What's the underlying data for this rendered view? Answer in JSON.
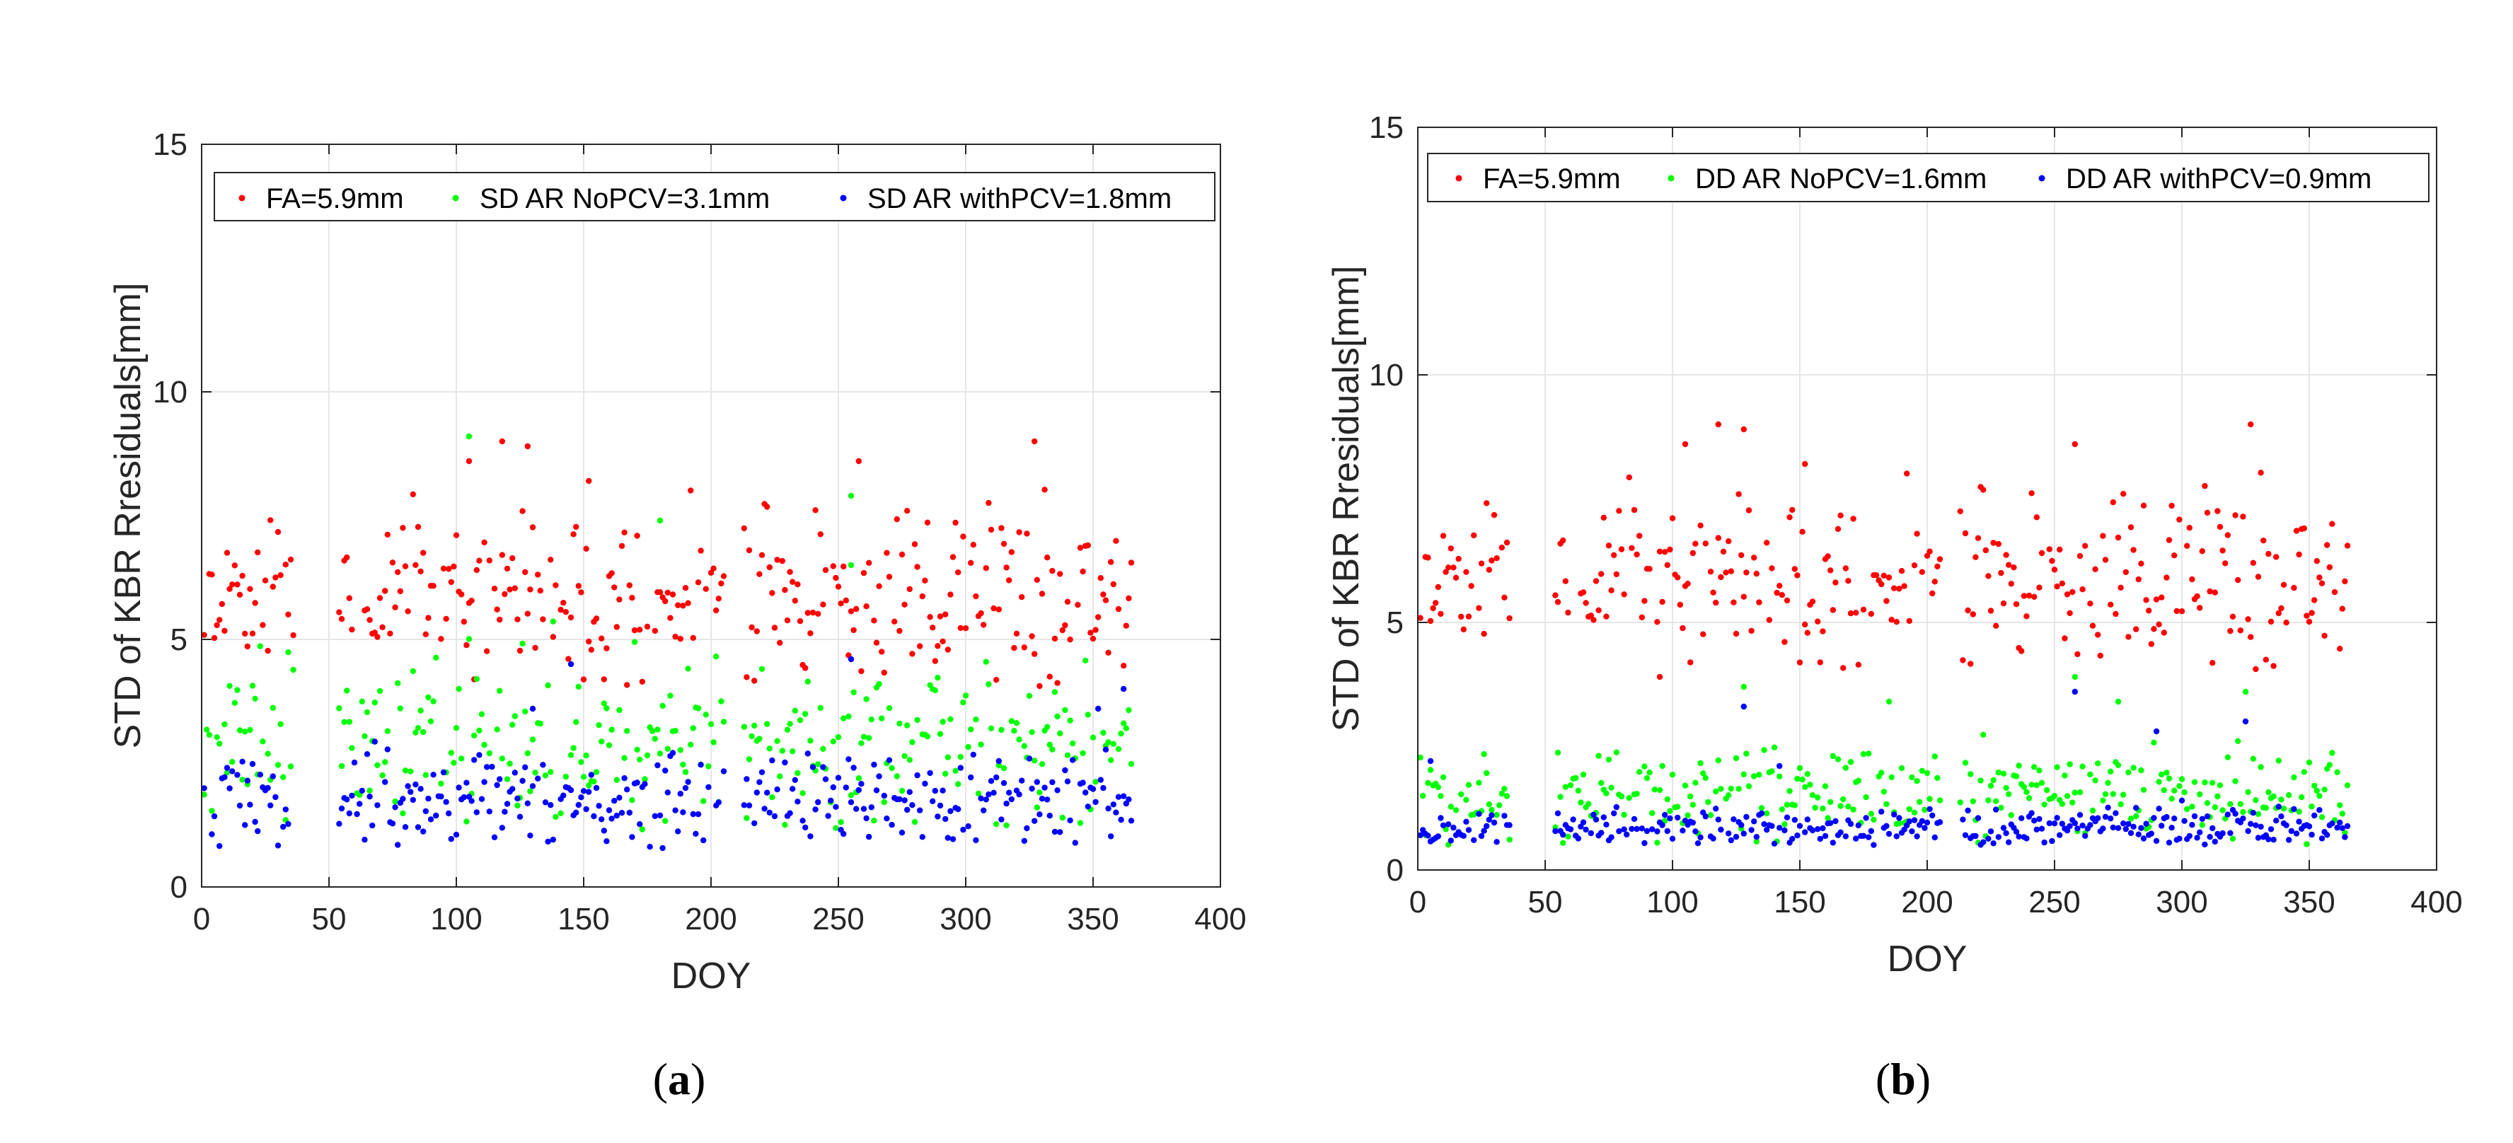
{
  "chart_data": [
    {
      "id": "a",
      "type": "scatter",
      "caption": {
        "open": "(",
        "letter": "a",
        "close": ")"
      },
      "xlabel": "DOY",
      "ylabel": "STD of KBR Rresiduals[mm]",
      "xlim": [
        0,
        400
      ],
      "ylim": [
        0,
        15
      ],
      "xticks": [
        0,
        50,
        100,
        150,
        200,
        250,
        300,
        350,
        400
      ],
      "yticks": [
        0,
        5,
        10,
        15
      ],
      "grid": true,
      "legend_position": "top",
      "series": [
        {
          "name": "FA=5.9mm",
          "color": "#ff0000",
          "mean": 5.9,
          "spread": 0.85,
          "seed": 11,
          "outliers": [
            [
              105,
              8.6
            ],
            [
              118,
              9.0
            ],
            [
              128,
              8.9
            ],
            [
              152,
              8.2
            ],
            [
              258,
              8.6
            ],
            [
              327,
              9.0
            ]
          ]
        },
        {
          "name": "SD AR NoPCV=3.1mm",
          "color": "#00ff00",
          "mean": 2.9,
          "spread": 0.8,
          "seed": 23,
          "outliers": [
            [
              105,
              9.1
            ],
            [
              180,
              7.4
            ],
            [
              255,
              7.9
            ],
            [
              108,
              4.2
            ],
            [
              255,
              6.5
            ]
          ]
        },
        {
          "name": "SD AR withPCV=1.8mm",
          "color": "#0000ff",
          "mean": 1.75,
          "spread": 0.45,
          "seed": 37,
          "outliers": [
            [
              130,
              3.6
            ],
            [
              145,
              4.5
            ],
            [
              255,
              4.6
            ],
            [
              352,
              3.6
            ],
            [
              362,
              4.0
            ]
          ]
        }
      ],
      "doy_segments": [
        [
          1,
          36
        ],
        [
          54,
          205
        ],
        [
          213,
          365
        ]
      ]
    },
    {
      "id": "b",
      "type": "scatter",
      "caption": {
        "open": "(",
        "letter": "b",
        "close": ")"
      },
      "xlabel": "DOY",
      "ylabel": "STD of KBR Rresiduals[mm]",
      "xlim": [
        0,
        400
      ],
      "ylim": [
        0,
        15
      ],
      "xticks": [
        0,
        50,
        100,
        150,
        200,
        250,
        300,
        350,
        400
      ],
      "yticks": [
        0,
        5,
        10,
        15
      ],
      "grid": true,
      "legend_position": "top",
      "series": [
        {
          "name": "FA=5.9mm",
          "color": "#ff0000",
          "mean": 5.9,
          "spread": 0.85,
          "seed": 11,
          "outliers": [
            [
              105,
              8.6
            ],
            [
              118,
              9.0
            ],
            [
              128,
              8.9
            ],
            [
              152,
              8.2
            ],
            [
              258,
              8.6
            ],
            [
              327,
              9.0
            ],
            [
              95,
              3.9
            ]
          ]
        },
        {
          "name": "DD AR NoPCV=1.6mm",
          "color": "#00ff00",
          "mean": 1.5,
          "spread": 0.45,
          "seed": 53,
          "outliers": [
            [
              128,
              3.7
            ],
            [
              185,
              3.4
            ],
            [
              258,
              3.9
            ],
            [
              325,
              3.6
            ],
            [
              275,
              3.4
            ]
          ]
        },
        {
          "name": "DD AR withPCV=0.9mm",
          "color": "#0000ff",
          "mean": 0.85,
          "spread": 0.2,
          "seed": 71,
          "outliers": [
            [
              128,
              3.3
            ],
            [
              258,
              3.6
            ],
            [
              290,
              2.8
            ],
            [
              325,
              3.0
            ],
            [
              5,
              2.2
            ],
            [
              142,
              2.1
            ]
          ]
        }
      ],
      "doy_segments": [
        [
          1,
          36
        ],
        [
          54,
          205
        ],
        [
          213,
          365
        ]
      ]
    }
  ]
}
